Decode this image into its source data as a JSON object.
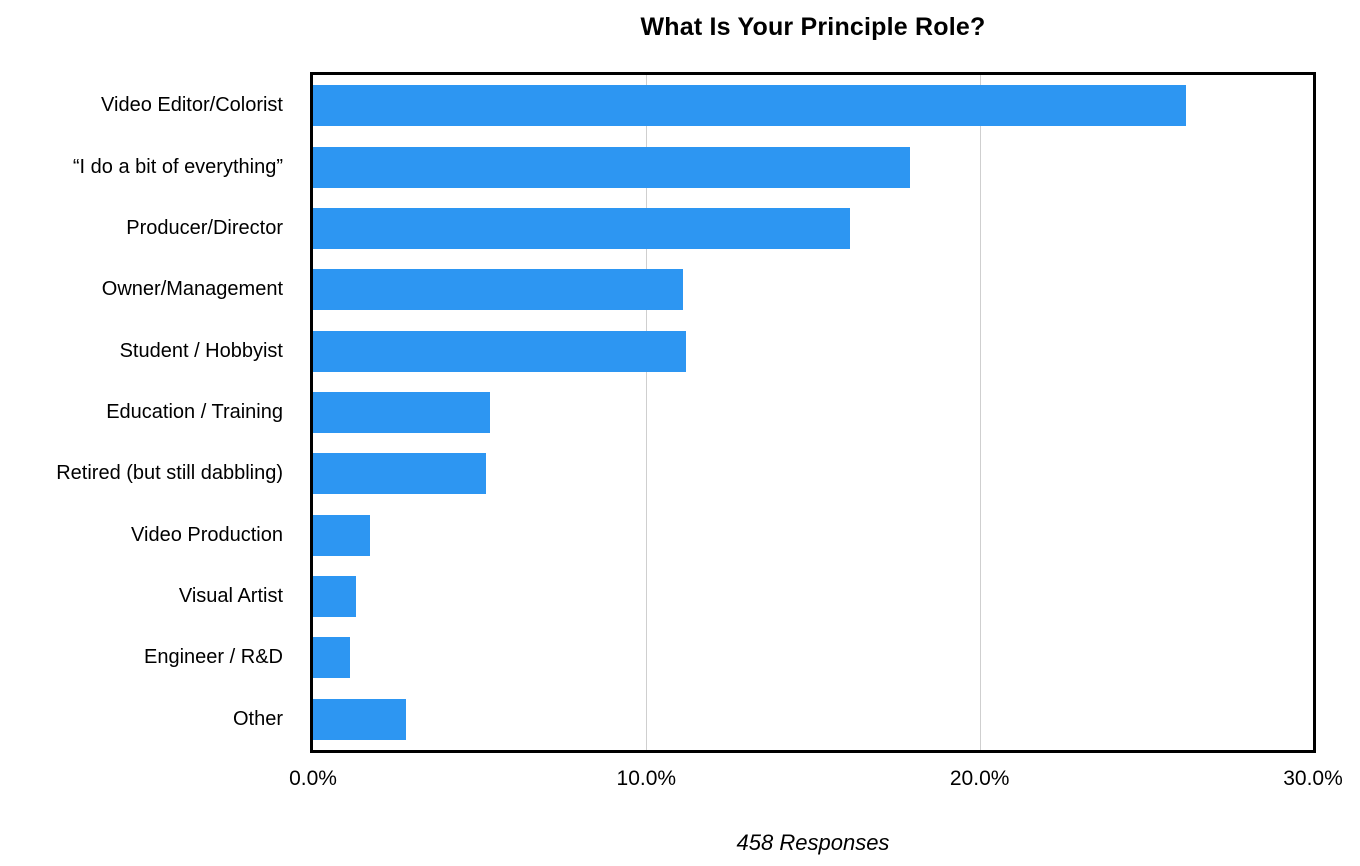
{
  "chart_data": {
    "type": "bar",
    "orientation": "horizontal",
    "title": "What Is Your Principle Role?",
    "categories": [
      "Video Editor/Colorist",
      "“I do a bit of everything”",
      "Producer/Director",
      "Owner/Management",
      "Student / Hobbyist",
      "Education / Training",
      "Retired (but still dabbling)",
      "Video Production",
      "Visual Artist",
      "Engineer / R&D",
      "Other"
    ],
    "values": [
      26.2,
      17.9,
      16.1,
      11.1,
      11.2,
      5.3,
      5.2,
      1.7,
      1.3,
      1.1,
      2.8
    ],
    "unit": "%",
    "xlabel": "",
    "ylabel": "",
    "xlim": [
      0,
      30
    ],
    "xticks": [
      "0.0%",
      "10.0%",
      "20.0%",
      "30.0%"
    ],
    "xtick_values": [
      0,
      10,
      20,
      30
    ],
    "gridline_values": [
      10,
      20
    ],
    "grid": "vertical",
    "legend": "none",
    "footnote": "458 Responses",
    "bar_color": "#2D96F2",
    "gridline_color": "#CFCFCF",
    "frame_color": "#000000"
  }
}
